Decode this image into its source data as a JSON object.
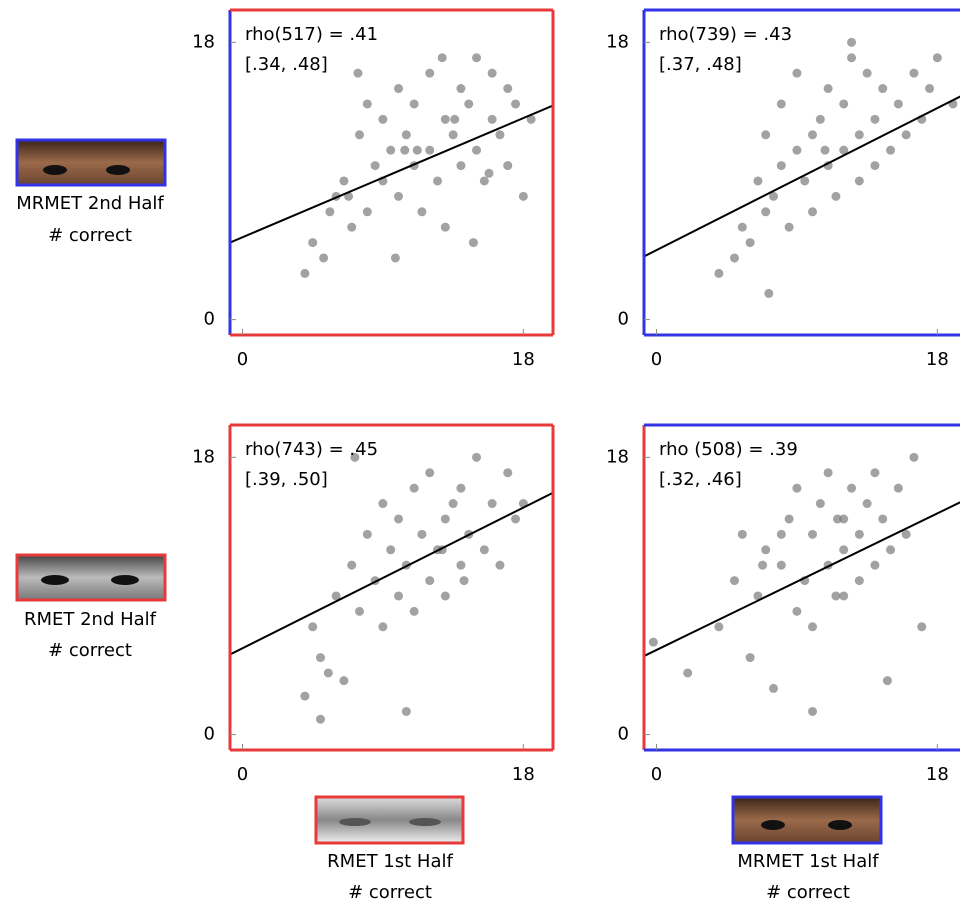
{
  "chart_data": [
    {
      "type": "scatter",
      "annotation": [
        "rho(517) = .41",
        "[.34, .48]"
      ],
      "x": [
        4,
        4.5,
        5.2,
        6,
        6.5,
        7,
        7.5,
        8,
        8,
        8.5,
        9,
        9,
        9.5,
        10,
        10,
        10.5,
        11,
        11,
        11.5,
        12,
        12,
        12.5,
        13,
        13,
        13.5,
        14,
        14,
        14.5,
        15,
        15,
        15.5,
        16,
        16,
        16.5,
        17,
        17,
        17.5,
        18,
        18.5,
        6.8,
        9.8,
        12.8,
        14.8,
        11.2,
        13.6,
        10.4,
        7.4,
        15.8,
        5.6
      ],
      "y": [
        3,
        5,
        4,
        8,
        9,
        6,
        12,
        7,
        14,
        10,
        9,
        13,
        11,
        8,
        15,
        12,
        10,
        14,
        7,
        11,
        16,
        9,
        13,
        6,
        12,
        15,
        10,
        14,
        11,
        17,
        9,
        13,
        16,
        12,
        10,
        15,
        14,
        8,
        13,
        8,
        4,
        17,
        5,
        11,
        13,
        11,
        16,
        9.5,
        7
      ],
      "fit": {
        "x": [
          -0.8,
          19.9
        ],
        "y": [
          5,
          13.9
        ]
      },
      "xlim": [
        -0.8,
        19.9
      ],
      "ylim": [
        -1,
        20.1
      ],
      "xticks": [
        0,
        18
      ],
      "yticks": [
        0,
        18
      ],
      "color": "#7a7a7a",
      "line_color": "#000000",
      "frame": {
        "left": "#3333e6",
        "other": "#e83a3a"
      }
    },
    {
      "type": "scatter",
      "annotation": [
        "rho(739) = .43",
        "[.37, .48]"
      ],
      "x": [
        4,
        5,
        5.5,
        6,
        6.5,
        7,
        7,
        7.5,
        8,
        8,
        8.5,
        9,
        9,
        9.5,
        10,
        10,
        10.5,
        11,
        11,
        11.5,
        12,
        12,
        12.5,
        13,
        13,
        13.5,
        14,
        14,
        14.5,
        15,
        15.5,
        16,
        16.5,
        17,
        17.5,
        18,
        19,
        7.2,
        12.5,
        10.8
      ],
      "y": [
        3,
        4,
        6,
        5,
        9,
        7,
        12,
        8,
        10,
        14,
        6,
        11,
        16,
        9,
        12,
        7,
        13,
        10,
        15,
        8,
        11,
        14,
        17,
        9,
        12,
        16,
        10,
        13,
        15,
        11,
        14,
        12,
        16,
        13,
        15,
        17,
        14,
        1.7,
        18,
        11
      ],
      "fit": {
        "x": [
          -0.8,
          19.5
        ],
        "y": [
          4.1,
          14.5
        ]
      },
      "xlim": [
        -0.8,
        19.9
      ],
      "ylim": [
        -1,
        20.1
      ],
      "xticks": [
        0,
        18
      ],
      "yticks": [
        0,
        18
      ],
      "color": "#7a7a7a",
      "line_color": "#000000",
      "frame": {
        "left": "#3333e6",
        "other": "#3333e6"
      }
    },
    {
      "type": "scatter",
      "annotation": [
        "rho(743) = .45",
        "[.39, .50]"
      ],
      "x": [
        4,
        4.5,
        5,
        5,
        5.5,
        6,
        6.5,
        7,
        7.5,
        8,
        8.5,
        9,
        9,
        9.5,
        10,
        10,
        10.5,
        11,
        11,
        11.5,
        12,
        12,
        12.5,
        13,
        13,
        13.5,
        14,
        14,
        14.5,
        15,
        15.5,
        16,
        16.5,
        17,
        17.5,
        18,
        10.5,
        7.2,
        12.8,
        14.2
      ],
      "y": [
        2.5,
        7,
        1,
        5,
        4,
        9,
        3.5,
        11,
        8,
        13,
        10,
        7,
        15,
        12,
        9,
        14,
        11,
        16,
        8,
        13,
        10,
        17,
        12,
        14,
        9,
        15,
        11,
        16,
        13,
        18,
        12,
        15,
        11,
        17,
        14,
        15,
        1.5,
        18,
        12,
        10
      ],
      "fit": {
        "x": [
          -0.8,
          19.9
        ],
        "y": [
          5.2,
          15.7
        ]
      },
      "xlim": [
        -0.8,
        19.9
      ],
      "ylim": [
        -1,
        20.1
      ],
      "xticks": [
        0,
        18
      ],
      "yticks": [
        0,
        18
      ],
      "color": "#7a7a7a",
      "line_color": "#000000",
      "frame": {
        "left": "#e83a3a",
        "other": "#e83a3a"
      }
    },
    {
      "type": "scatter",
      "annotation": [
        "rho (508) = .39",
        "[.32, .46]"
      ],
      "x": [
        -0.2,
        2,
        4,
        5,
        5.5,
        6,
        6.5,
        7,
        7.5,
        8,
        8.5,
        9,
        9,
        9.5,
        10,
        10,
        10.5,
        11,
        11,
        11.5,
        12,
        12,
        12.5,
        13,
        13,
        13.5,
        14,
        14,
        14.5,
        15,
        15.5,
        16,
        16.5,
        17,
        10,
        8,
        12,
        14.8,
        6.8,
        11.6
      ],
      "y": [
        6,
        4,
        7,
        10,
        13,
        5,
        9,
        12,
        3,
        11,
        14,
        8,
        16,
        10,
        13,
        7,
        15,
        11,
        17,
        9,
        12,
        14,
        16,
        10,
        13,
        15,
        11,
        17,
        14,
        12,
        16,
        13,
        18,
        7,
        1.5,
        13,
        9,
        3.5,
        11,
        14
      ],
      "fit": {
        "x": [
          -0.8,
          19.5
        ],
        "y": [
          5.1,
          15.1
        ]
      },
      "xlim": [
        -0.8,
        19.9
      ],
      "ylim": [
        -1,
        20.1
      ],
      "xticks": [
        0,
        18
      ],
      "yticks": [
        0,
        18
      ],
      "color": "#7a7a7a",
      "line_color": "#000000",
      "frame": {
        "left": "#e83a3a",
        "other": "#3333e6"
      }
    }
  ],
  "row_labels": [
    {
      "title": "MRMET 2nd Half",
      "subtitle": "# correct"
    },
    {
      "title": "RMET 2nd Half",
      "subtitle": "# correct"
    }
  ],
  "column_labels": [
    {
      "title": "RMET 1st Half",
      "subtitle": "# correct"
    },
    {
      "title": "MRMET 1st Half",
      "subtitle": "# correct"
    }
  ]
}
